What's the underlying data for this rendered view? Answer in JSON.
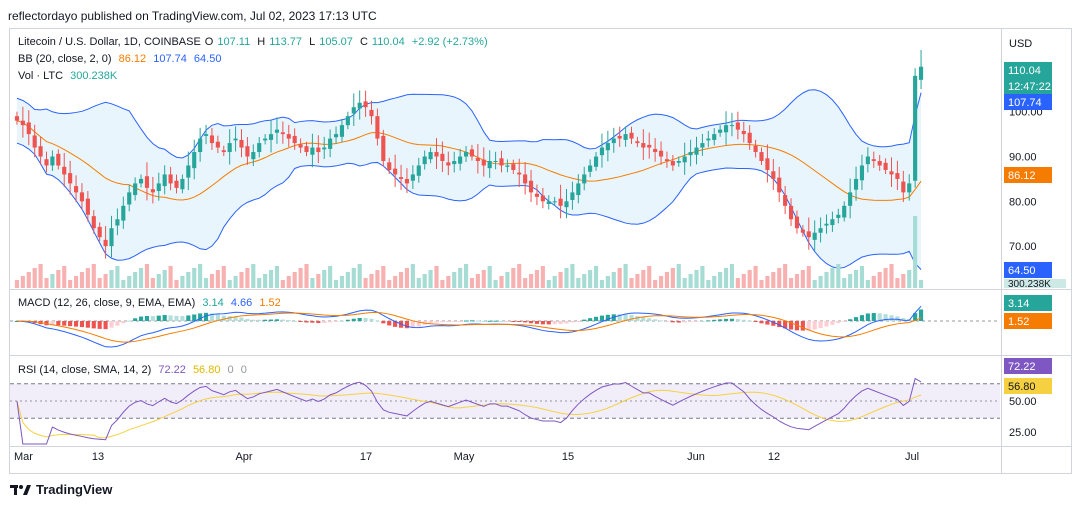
{
  "header": {
    "published": "reflectordayo published on TradingView.com, Jul 02, 2023 17:13 UTC",
    "symbol": "Litecoin / U.S. Dollar, 1D, COINBASE",
    "o_label": "O",
    "o_value": "107.11",
    "h_label": "H",
    "h_value": "113.77",
    "l_label": "L",
    "l_value": "105.07",
    "c_label": "C",
    "c_value": "110.04",
    "change": "+2.92 (+2.73%)",
    "bb_label": "BB (20, close, 2, 0)",
    "bb_mid": "86.12",
    "bb_up": "107.74",
    "bb_low": "64.50",
    "vol_label": "Vol · LTC",
    "vol_value": "300.238K",
    "macd_label": "MACD (12, 26, close, 9, EMA, EMA)",
    "macd_hist": "3.14",
    "macd_line": "4.66",
    "macd_signal": "1.52",
    "rsi_label": "RSI (14, close, SMA, 14, 2)",
    "rsi_value": "72.22",
    "rsi_sma": "56.80",
    "rsi_extra1": "0",
    "rsi_extra2": "0"
  },
  "axis": {
    "currency": "USD",
    "price_ticks": [
      "100.00",
      "90.00",
      "80.00",
      "70.00"
    ],
    "rsi_ticks": [
      "50.00",
      "25.00"
    ],
    "x_labels": [
      "Mar",
      "13",
      "Apr",
      "17",
      "May",
      "15",
      "Jun",
      "12",
      "Jul"
    ]
  },
  "badges": {
    "price": "110.04",
    "countdown": "12:47:22",
    "bb_up": "107.74",
    "bb_mid": "86.12",
    "bb_low": "64.50",
    "vol": "300.238K",
    "hist": "3.14",
    "signal": "1.52",
    "rsi": "72.22",
    "rsi_sma": "56.80"
  },
  "footer": {
    "brand": "TradingView"
  },
  "colors": {
    "up": "#26a69a",
    "down": "#ef5350",
    "bb_band": "#2962ff",
    "bb_basis": "#f57c00",
    "bb_fill": "#e3f2fd",
    "rsi_line": "#7e57c2",
    "rsi_sma": "#f5d142"
  },
  "chart_data": {
    "type": "candlestick",
    "title": "Litecoin / U.S. Dollar, 1D, COINBASE",
    "ylim": [
      62,
      116
    ],
    "x_labels": [
      "Mar",
      "13",
      "Apr",
      "17",
      "May",
      "15",
      "Jun",
      "12",
      "Jul"
    ],
    "close": [
      98,
      97,
      95,
      92,
      90,
      88,
      90,
      88,
      86,
      84,
      82,
      80,
      77,
      74,
      72,
      70,
      74,
      76,
      79,
      82,
      84,
      85,
      83,
      82,
      84,
      86,
      84,
      83,
      85,
      88,
      91,
      94,
      95,
      93,
      92,
      91,
      93,
      94,
      92,
      90,
      91,
      93,
      94,
      95,
      96,
      95,
      94,
      93,
      92,
      91,
      92,
      91,
      92,
      94,
      95,
      97,
      99,
      101,
      102,
      101,
      99,
      94,
      89,
      87,
      86,
      85,
      84,
      86,
      88,
      90,
      91,
      90,
      89,
      88,
      89,
      90,
      91,
      90,
      89,
      88,
      89,
      89,
      88,
      88,
      87,
      86,
      84,
      82,
      81,
      80,
      80,
      80,
      79,
      80,
      82,
      84,
      86,
      88,
      90,
      92,
      93,
      94,
      94,
      95,
      94,
      93,
      92,
      92,
      91,
      90,
      89,
      88,
      89,
      90,
      91,
      92,
      93,
      94,
      95,
      96,
      97,
      97,
      96,
      95,
      93,
      91,
      89,
      87,
      85,
      82,
      79,
      76,
      74,
      73,
      72,
      73,
      74,
      75,
      76,
      77,
      79,
      82,
      85,
      88,
      90,
      89,
      88,
      87,
      86,
      85,
      82,
      84,
      108,
      110.04
    ],
    "volume_last": "300.238K",
    "bollinger": {
      "basis_last": 86.12,
      "upper_last": 107.74,
      "lower_last": 64.5
    },
    "macd": {
      "histogram": 3.14,
      "macd": 4.66,
      "signal": 1.52
    },
    "rsi": {
      "value": 72.22,
      "sma": 56.8,
      "levels": [
        70,
        50,
        30
      ]
    }
  }
}
